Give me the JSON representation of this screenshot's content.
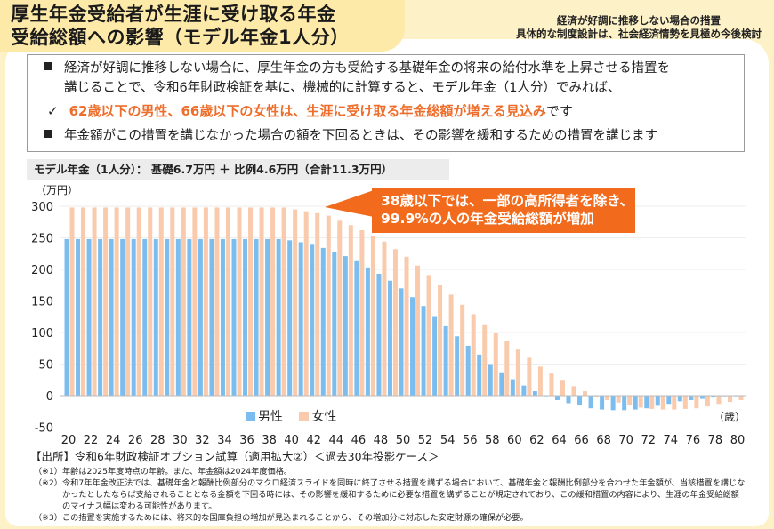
{
  "title": {
    "line1": "厚生年金受給者が生涯に受け取る年金",
    "line2": "受給総額への影響（モデル年金1人分）"
  },
  "subnote": {
    "line1": "経済が好調に推移しない場合の措置",
    "line2": "具体的な制度設計は、社会経済情勢を見極め今後検討"
  },
  "bullets": {
    "b1_line1": "経済が好調に推移しない場合に、厚生年金の方も受給する基礎年金の将来の給付水準を上昇させる措置を",
    "b1_line2": "講じることで、令和6年財政検証を基に、機械的に計算すると、モデル年金（1人分）でみれば、",
    "check_mark": "✓",
    "check_highlight": "62歳以下の男性、66歳以下の女性は、生涯に受け取る年金総額が増える見込み",
    "check_tail": "です",
    "b2": "年金額がこの措置を講じなかった場合の額を下回るときは、その影響を緩和するための措置を講じます"
  },
  "model_label": "モデル年金（1人分）： 基礎6.7万円 ＋ 比例4.6万円（合計11.3万円）",
  "callout": {
    "line1": "38歳以下では、一部の高所得者を除き、",
    "line2": "99.9%の人の年金受給総額が増加"
  },
  "colors": {
    "male": "#7cbdf0",
    "female": "#f9cbac",
    "accent": "#f26b1d",
    "highlight_text": "#ee6d2a"
  },
  "chart_data": {
    "type": "bar",
    "ylabel": "（万円）",
    "xlabel": "（歳）",
    "ylim": [
      -50,
      300
    ],
    "yticks": [
      -50,
      0,
      50,
      100,
      150,
      200,
      250,
      300
    ],
    "xtick_labels": [
      "20",
      "22",
      "24",
      "26",
      "28",
      "30",
      "32",
      "34",
      "36",
      "38",
      "40",
      "42",
      "44",
      "46",
      "48",
      "50",
      "52",
      "54",
      "56",
      "58",
      "60",
      "62",
      "64",
      "66",
      "68",
      "70",
      "72",
      "74",
      "76",
      "78",
      "80"
    ],
    "grid": true,
    "legend_placement": "bottom",
    "categories": [
      20,
      21,
      22,
      23,
      24,
      25,
      26,
      27,
      28,
      29,
      30,
      31,
      32,
      33,
      34,
      35,
      36,
      37,
      38,
      39,
      40,
      41,
      42,
      43,
      44,
      45,
      46,
      47,
      48,
      49,
      50,
      51,
      52,
      53,
      54,
      55,
      56,
      57,
      58,
      59,
      60,
      61,
      62,
      63,
      64,
      65,
      66,
      67,
      68,
      69,
      70,
      71,
      72,
      73,
      74,
      75,
      76,
      77,
      78,
      79,
      80
    ],
    "series": [
      {
        "name": "男性",
        "values": [
          248,
          248,
          248,
          248,
          248,
          248,
          248,
          248,
          248,
          248,
          248,
          248,
          248,
          248,
          248,
          248,
          248,
          248,
          248,
          248,
          246,
          243,
          239,
          234,
          228,
          221,
          213,
          203,
          193,
          182,
          170,
          156,
          142,
          126,
          110,
          94,
          79,
          65,
          50,
          37,
          26,
          16,
          7,
          -1,
          -7,
          -12,
          -15,
          -20,
          -22,
          -23,
          -23,
          -22,
          -20,
          -16,
          -13,
          -9,
          -7,
          -5,
          -3,
          -1,
          -1
        ]
      },
      {
        "name": "女性",
        "values": [
          298,
          298,
          298,
          298,
          298,
          298,
          298,
          298,
          298,
          298,
          298,
          298,
          298,
          298,
          298,
          298,
          298,
          298,
          298,
          298,
          295,
          292,
          289,
          285,
          277,
          270,
          262,
          253,
          244,
          232,
          220,
          206,
          191,
          176,
          160,
          144,
          129,
          113,
          100,
          86,
          73,
          60,
          46,
          35,
          25,
          15,
          7,
          -2,
          -7,
          -11,
          -15,
          -19,
          -21,
          -22,
          -22,
          -21,
          -20,
          -17,
          -13,
          -10,
          -7
        ]
      }
    ]
  },
  "source": "【出所】令和6年財政検証オプション試算（適用拡大②）＜過去30年投影ケース＞",
  "notes": [
    {
      "key": "（※1）",
      "text": "年齢は2025年度時点の年齢。また、年金額は2024年度価格。"
    },
    {
      "key": "（※2）",
      "text": "令和7年年金改正法では、基礎年金と報酬比例部分のマクロ経済スライドを同時に終了させる措置を講ずる場合において、基礎年金と報酬比例部分を合わせた年金額が、当該措置を講じなかったとしたならば支給されることとなる金額を下回る時には、その影響を緩和するために必要な措置を講ずることが規定されており、この緩和措置の内容により、生涯の年金受給総額のマイナス幅は変わる可能性があります。"
    },
    {
      "key": "（※3）",
      "text": "この措置を実施するためには、将来的な国庫負担の増加が見込まれることから、その増加分に対応した安定財源の確保が必要。"
    }
  ]
}
